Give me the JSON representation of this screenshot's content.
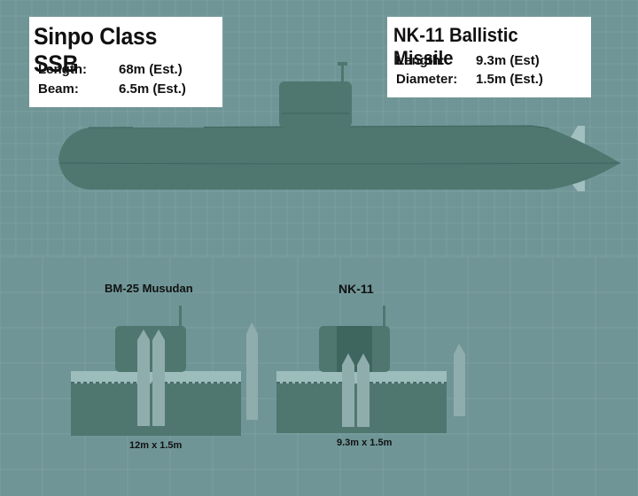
{
  "submarine_box": {
    "title": "Sinpo Class SSB",
    "specs": [
      {
        "label": "Length:",
        "value": "68m  (Est.)"
      },
      {
        "label": "Beam:",
        "value": "6.5m (Est.)"
      }
    ]
  },
  "missile_box": {
    "title": "NK-11 Ballistic Missile",
    "specs": [
      {
        "label": "Length:",
        "value": "9.3m (Est)"
      },
      {
        "label": "Diameter:",
        "value": "1.5m (Est.)"
      }
    ]
  },
  "sections": [
    {
      "label": "BM-25 Musudan",
      "dimension": "12m x 1.5m"
    },
    {
      "label": "NK-11",
      "dimension": "9.3m x 1.5m"
    }
  ],
  "colors": {
    "background": "#6f9596",
    "grid": "#8fb0b1",
    "hull": "#4f7770",
    "hull_dark": "#3f655f",
    "sea_band": "#9dbdbd",
    "missile": "#90adae"
  }
}
